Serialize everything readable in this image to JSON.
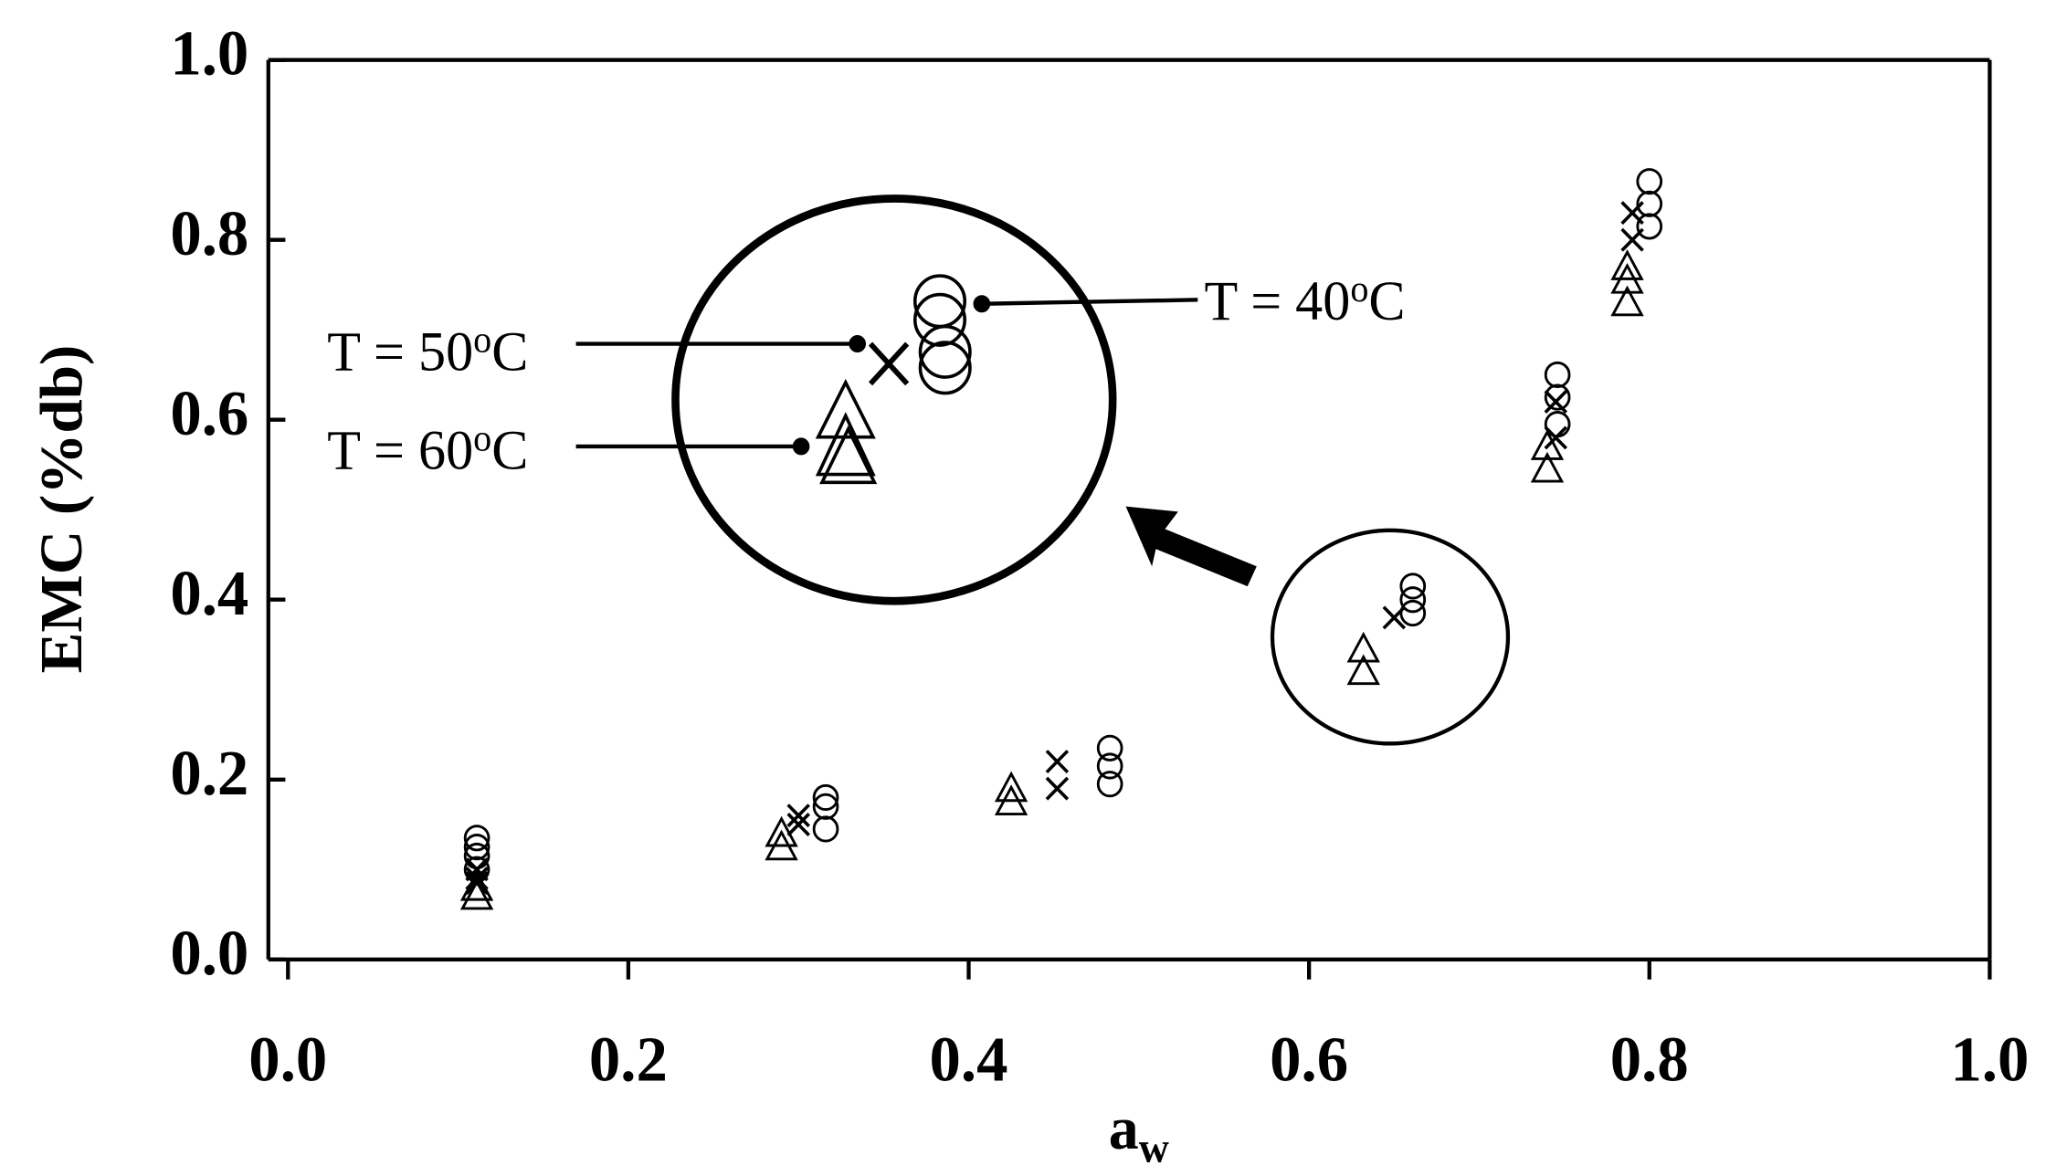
{
  "chart_data": {
    "type": "scatter",
    "x_label": {
      "base": "a",
      "subscript": "w"
    },
    "y_label": "EMC (%db)",
    "xlim": [
      0,
      1
    ],
    "ylim": [
      0,
      1
    ],
    "xticks": [
      {
        "value": 0,
        "label": "0.0"
      },
      0.2,
      0.4,
      0.6,
      0.8,
      {
        "value": 1,
        "label": "1.0"
      }
    ],
    "yticks": [
      {
        "value": 0,
        "label": "0.0"
      },
      0.2,
      0.4,
      0.6,
      0.8,
      {
        "value": 1,
        "label": "1.0"
      }
    ],
    "series": [
      {
        "marker": "circle",
        "color": "#000000",
        "x": [
          0.111,
          0.111,
          0.111,
          0.111,
          0.316,
          0.316,
          0.316,
          0.483,
          0.483,
          0.483,
          0.661,
          0.661,
          0.661,
          0.746,
          0.746,
          0.746,
          0.8,
          0.8,
          0.8
        ],
        "values": [
          0.135,
          0.125,
          0.115,
          0.1,
          0.18,
          0.17,
          0.145,
          0.235,
          0.215,
          0.195,
          0.415,
          0.4,
          0.385,
          0.65,
          0.625,
          0.595,
          0.865,
          0.84,
          0.815
        ]
      },
      {
        "marker": "x",
        "color": "#000000",
        "x": [
          0.111,
          0.111,
          0.111,
          0.3,
          0.3,
          0.452,
          0.452,
          0.65,
          0.745,
          0.745,
          0.79,
          0.79
        ],
        "values": [
          0.1,
          0.09,
          0.085,
          0.16,
          0.15,
          0.22,
          0.19,
          0.38,
          0.62,
          0.58,
          0.83,
          0.8
        ]
      },
      {
        "marker": "triangle",
        "color": "#000000",
        "x": [
          0.111,
          0.111,
          0.29,
          0.29,
          0.425,
          0.425,
          0.632,
          0.632,
          0.74,
          0.74,
          0.787,
          0.787,
          0.787
        ],
        "values": [
          0.08,
          0.07,
          0.14,
          0.125,
          0.19,
          0.175,
          0.345,
          0.32,
          0.57,
          0.545,
          0.77,
          0.755,
          0.73
        ]
      }
    ],
    "annotations": [
      {
        "prefix": "T = 40",
        "superscript": "o",
        "suffix": "C"
      },
      {
        "prefix": "T = 50",
        "superscript": "o",
        "suffix": "C"
      },
      {
        "prefix": "T = 60",
        "superscript": "o",
        "suffix": "C"
      }
    ]
  }
}
